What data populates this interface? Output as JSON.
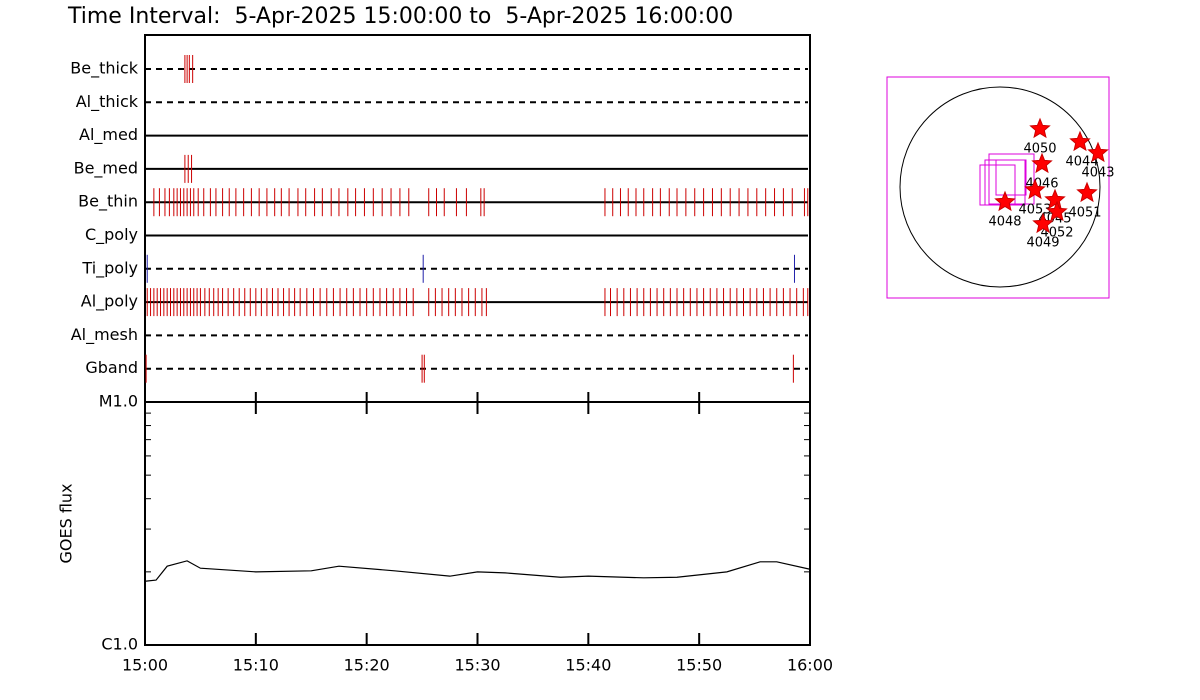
{
  "chart_data": [
    {
      "type": "event",
      "title": "Time Interval:  5-Apr-2025 15:00:00 to  5-Apr-2025 16:00:00",
      "xlim": [
        0,
        60
      ],
      "rows": [
        {
          "name": "Be_thick",
          "style": "dashed",
          "color": "#cc0000",
          "times": [
            3.6,
            3.8,
            4.0,
            4.3
          ]
        },
        {
          "name": "Al_thick",
          "style": "dashed",
          "color": "#cc0000",
          "times": []
        },
        {
          "name": "Al_med",
          "style": "solid",
          "color": "#cc0000",
          "times": []
        },
        {
          "name": "Be_med",
          "style": "solid",
          "color": "#cc0000",
          "times": [
            3.6,
            3.9,
            4.2
          ]
        },
        {
          "name": "Be_thin",
          "style": "solid",
          "color": "#cc0000",
          "times": [
            0.8,
            1.3,
            1.8,
            2.2,
            2.6,
            2.9,
            3.2,
            3.5,
            3.8,
            4.1,
            4.4,
            4.8,
            5.3,
            5.9,
            6.4,
            7.0,
            7.6,
            8.2,
            8.9,
            9.6,
            10.3,
            11.0,
            11.7,
            12.3,
            13.0,
            13.8,
            14.5,
            15.3,
            16.0,
            16.8,
            17.5,
            18.3,
            19.0,
            19.8,
            20.6,
            21.4,
            22.2,
            23.0,
            23.8,
            25.6,
            26.3,
            27.0,
            28.1,
            29.0,
            30.3,
            30.6,
            41.5,
            42.2,
            42.9,
            43.6,
            44.3,
            45.0,
            45.8,
            46.5,
            47.3,
            48.0,
            48.8,
            49.6,
            50.4,
            51.2,
            52.0,
            52.8,
            53.6,
            54.4,
            55.2,
            56.0,
            56.8,
            57.6,
            58.4,
            59.5,
            59.8
          ]
        },
        {
          "name": "C_poly",
          "style": "solid",
          "color": "#cc0000",
          "times": []
        },
        {
          "name": "Ti_poly",
          "style": "dashed",
          "color": "#2020aa",
          "times": [
            0.2,
            25.1,
            58.6
          ]
        },
        {
          "name": "Al_poly",
          "style": "solid",
          "color": "#cc0000",
          "times": [
            0.2,
            0.5,
            0.8,
            1.1,
            1.4,
            1.7,
            2.0,
            2.3,
            2.6,
            2.9,
            3.2,
            3.5,
            3.8,
            4.1,
            4.4,
            4.7,
            5.0,
            5.4,
            5.8,
            6.2,
            6.6,
            7.0,
            7.5,
            8.0,
            8.5,
            9.0,
            9.5,
            10.0,
            10.5,
            11.0,
            11.5,
            12.0,
            12.5,
            13.0,
            13.5,
            14.0,
            14.6,
            15.2,
            15.8,
            16.4,
            17.0,
            17.6,
            18.2,
            18.8,
            19.4,
            20.0,
            20.6,
            21.2,
            21.8,
            22.4,
            23.0,
            23.6,
            24.2,
            25.6,
            26.2,
            26.8,
            27.4,
            28.0,
            28.6,
            29.2,
            29.8,
            30.4,
            30.8,
            41.5,
            42.0,
            42.6,
            43.2,
            43.8,
            44.4,
            45.0,
            45.6,
            46.2,
            46.8,
            47.4,
            48.0,
            48.6,
            49.2,
            49.8,
            50.4,
            51.0,
            51.6,
            52.2,
            52.8,
            53.4,
            54.0,
            54.6,
            55.2,
            55.8,
            56.4,
            57.0,
            57.6,
            58.2,
            58.8,
            59.4,
            59.8
          ]
        },
        {
          "name": "Al_mesh",
          "style": "dashed",
          "color": "#cc0000",
          "times": []
        },
        {
          "name": "Gband",
          "style": "dashed",
          "color": "#cc0000",
          "times": [
            0.1,
            25.0,
            25.2,
            58.5
          ]
        }
      ]
    },
    {
      "type": "line",
      "ylabel": "GOES flux",
      "log": true,
      "xlim": [
        0,
        60
      ],
      "ylim": [
        1e-06,
        1e-05
      ],
      "yticks": [
        {
          "value": 1e-06,
          "label": "C1.0"
        },
        {
          "value": 1e-05,
          "label": "M1.0"
        }
      ],
      "xticks": [
        {
          "value": 0,
          "label": "15:00"
        },
        {
          "value": 10,
          "label": "15:10"
        },
        {
          "value": 20,
          "label": "15:20"
        },
        {
          "value": 30,
          "label": "15:30"
        },
        {
          "value": 40,
          "label": "15:40"
        },
        {
          "value": 50,
          "label": "15:50"
        },
        {
          "value": 60,
          "label": "16:00"
        }
      ],
      "x": [
        0,
        1,
        2,
        3.8,
        5,
        10,
        15,
        17.5,
        22.5,
        27.5,
        30,
        32.5,
        37.5,
        40,
        45,
        48,
        52.5,
        55.5,
        57,
        60
      ],
      "series": [
        {
          "color": "#000000",
          "values": [
            1.83e-06,
            1.85e-06,
            2.11e-06,
            2.22e-06,
            2.07e-06,
            2e-06,
            2.02e-06,
            2.11e-06,
            2.02e-06,
            1.92e-06,
            2e-06,
            1.98e-06,
            1.9e-06,
            1.92e-06,
            1.89e-06,
            1.9e-06,
            2e-06,
            2.2e-06,
            2.2e-06,
            2.05e-06
          ]
        }
      ]
    }
  ],
  "sun_map": {
    "regions": [
      "4050",
      "4044",
      "4043",
      "4046",
      "4053",
      "4045",
      "4051",
      "4048",
      "4052",
      "4049"
    ]
  }
}
